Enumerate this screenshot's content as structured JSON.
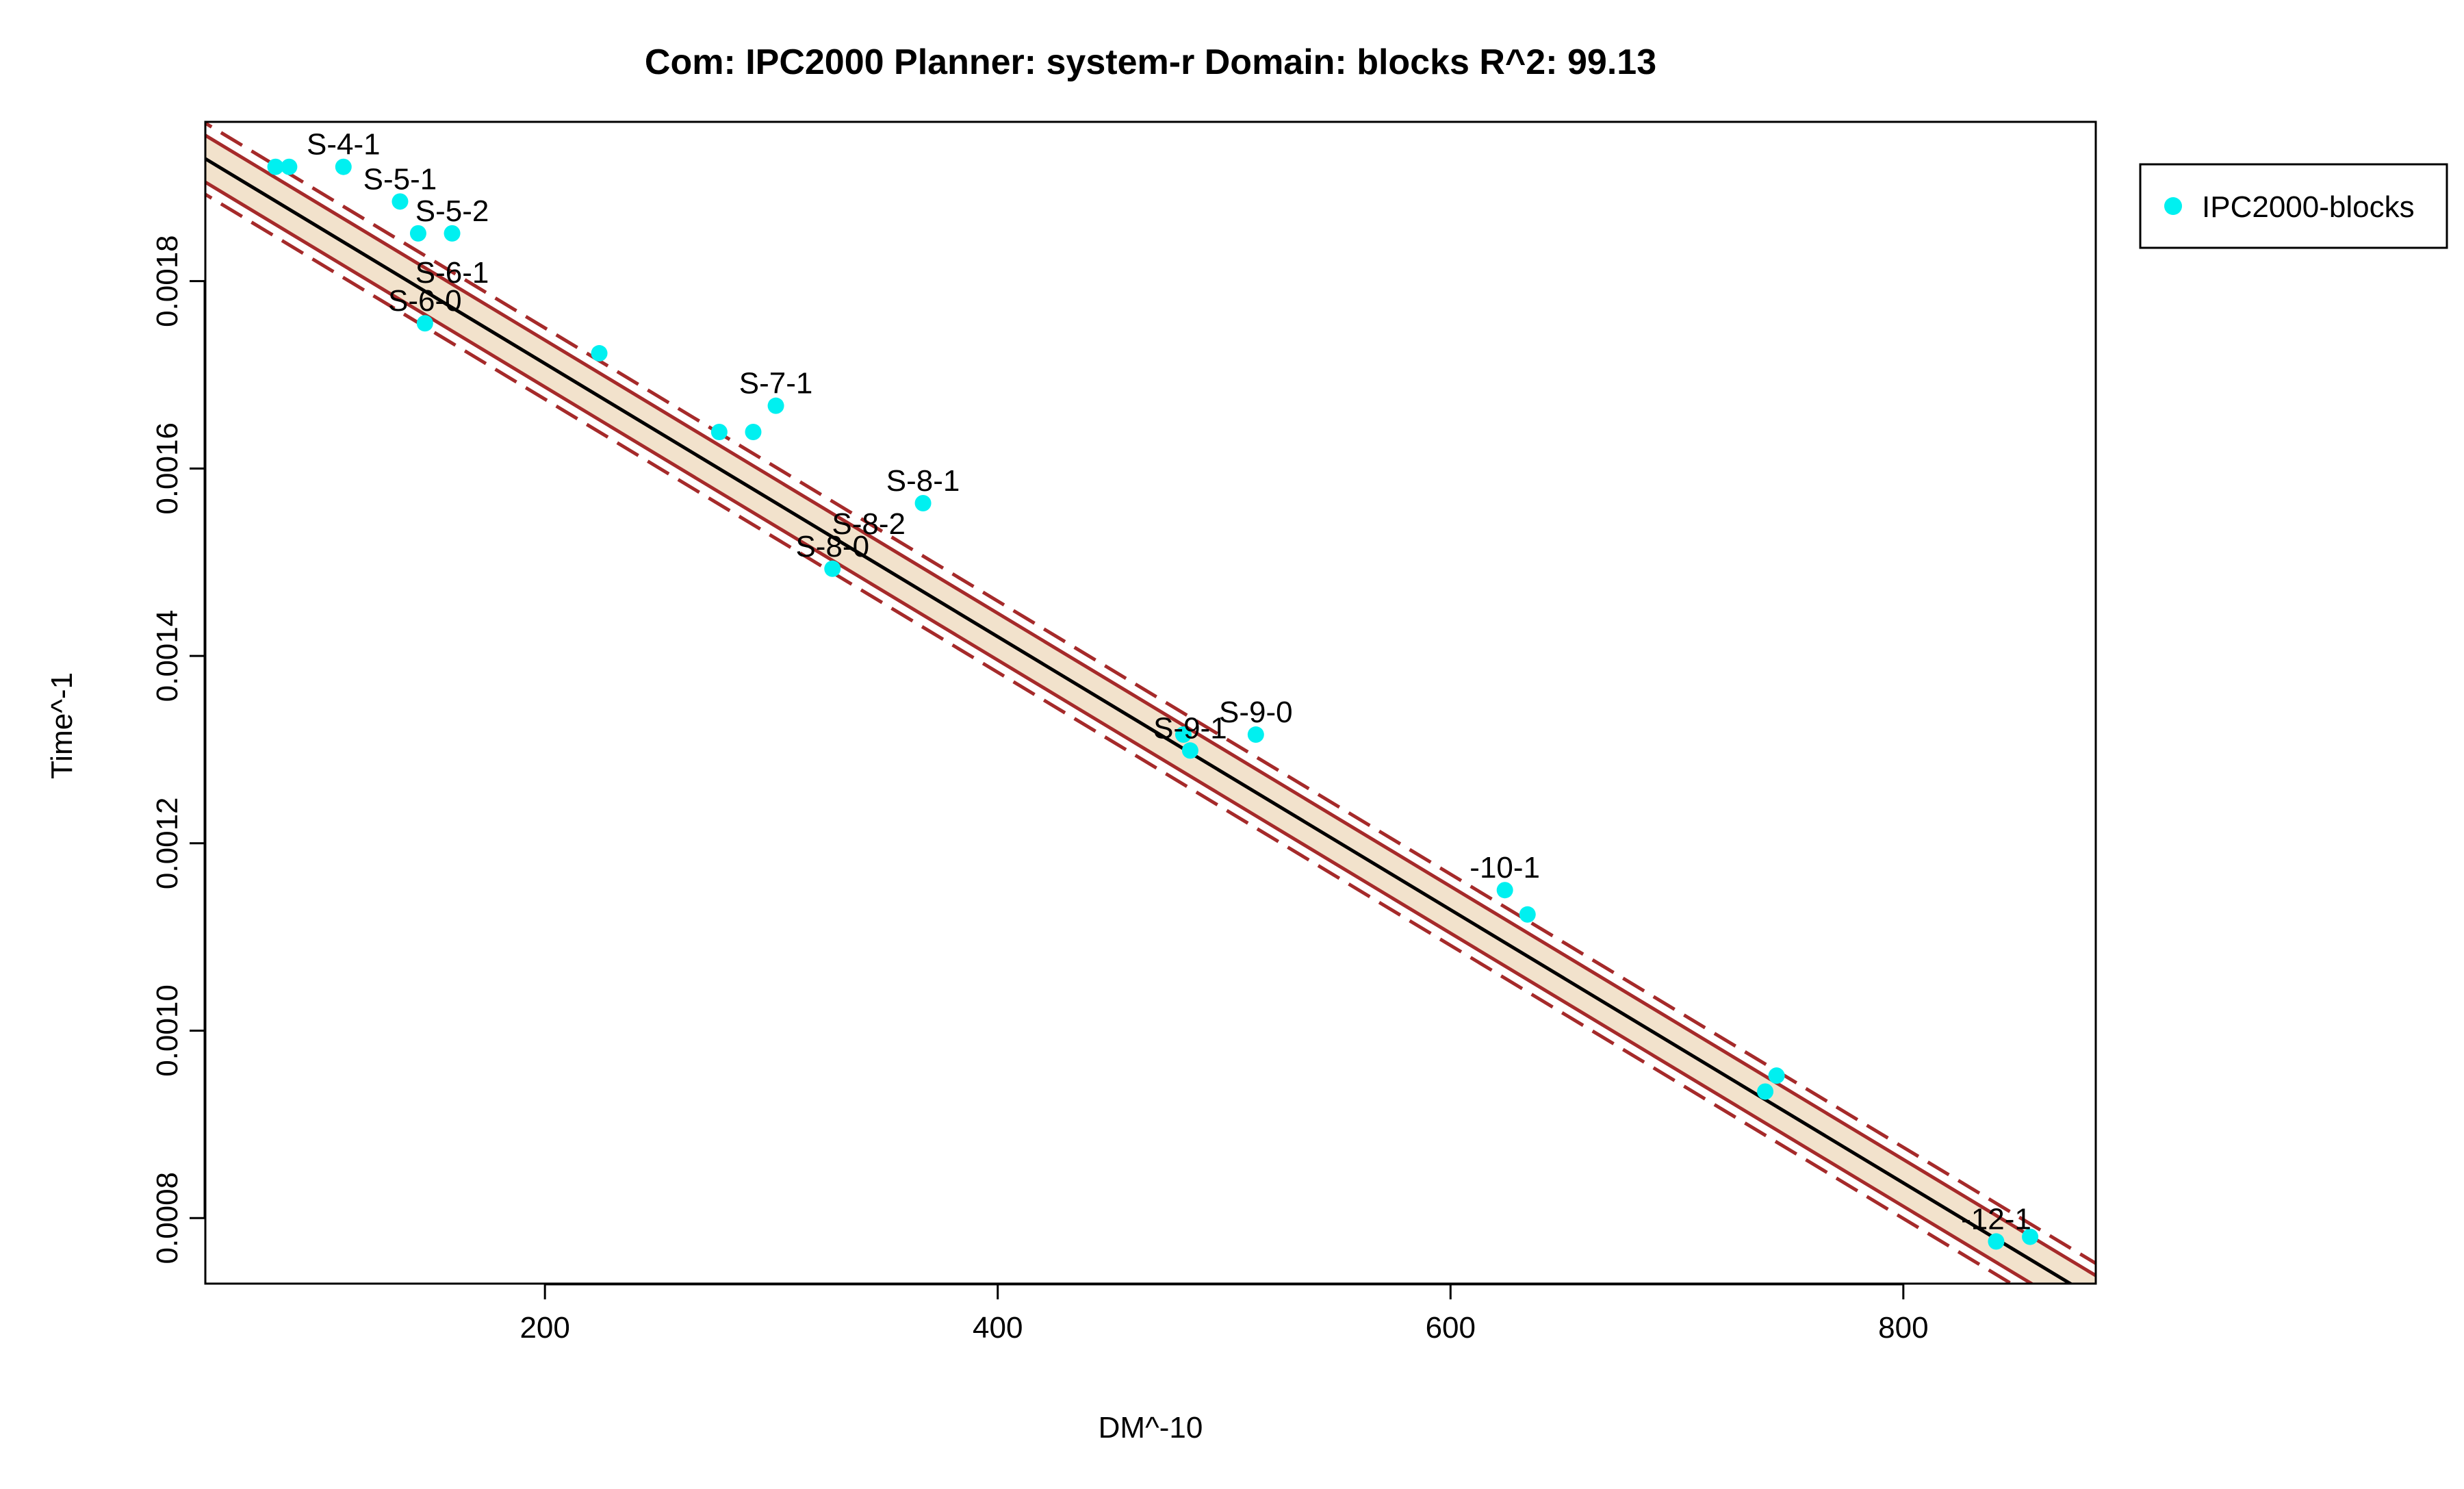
{
  "chart_data": {
    "type": "scatter",
    "title": "Com: IPC2000 Planner: system-r Domain: blocks R^2: 99.13",
    "xlabel": "DM^-10",
    "ylabel": "Time^-1",
    "xlim": [
      50,
      885
    ],
    "ylim": [
      0.00073,
      0.00197
    ],
    "xticks": [
      200,
      400,
      600,
      800
    ],
    "xtick_labels": [
      "200",
      "400",
      "600",
      "800"
    ],
    "yticks": [
      0.0008,
      0.001,
      0.0012,
      0.0014,
      0.0016,
      0.0018
    ],
    "ytick_labels": [
      "0.0008",
      "0.0010",
      "0.0012",
      "0.0014",
      "0.0016",
      "0.0018"
    ],
    "grid": false,
    "legend": {
      "position": "top-right",
      "entries": [
        "IPC2000-blocks"
      ]
    },
    "series": [
      {
        "name": "IPC2000-blocks",
        "color": "#00f0f0",
        "points": [
          {
            "x": 81,
            "y": 0.001922
          },
          {
            "x": 87,
            "y": 0.001922
          },
          {
            "x": 111,
            "y": 0.001922
          },
          {
            "x": 136,
            "y": 0.001885
          },
          {
            "x": 144,
            "y": 0.001851
          },
          {
            "x": 159,
            "y": 0.001851
          },
          {
            "x": 147,
            "y": 0.001755
          },
          {
            "x": 224,
            "y": 0.001723
          },
          {
            "x": 277,
            "y": 0.001639
          },
          {
            "x": 292,
            "y": 0.001639
          },
          {
            "x": 302,
            "y": 0.001667
          },
          {
            "x": 327,
            "y": 0.001493
          },
          {
            "x": 367,
            "y": 0.001563
          },
          {
            "x": 482,
            "y": 0.001316
          },
          {
            "x": 485,
            "y": 0.001299
          },
          {
            "x": 514,
            "y": 0.001316
          },
          {
            "x": 624,
            "y": 0.00115
          },
          {
            "x": 634,
            "y": 0.001124
          },
          {
            "x": 739,
            "y": 0.000935
          },
          {
            "x": 744,
            "y": 0.000952
          },
          {
            "x": 841,
            "y": 0.000775
          },
          {
            "x": 856,
            "y": 0.00078
          }
        ]
      }
    ],
    "annotations": [
      {
        "text": "S-4-1",
        "x": 111,
        "y": 0.001922
      },
      {
        "text": "S-5-1",
        "x": 136,
        "y": 0.001885
      },
      {
        "text": "S-5-2",
        "x": 159,
        "y": 0.001851
      },
      {
        "text": "S-6-1",
        "x": 159,
        "y": 0.001785
      },
      {
        "text": "S-6-0",
        "x": 147,
        "y": 0.001755
      },
      {
        "text": "S-7-1",
        "x": 302,
        "y": 0.001667
      },
      {
        "text": "S-8-1",
        "x": 367,
        "y": 0.001563
      },
      {
        "text": "S-8-2",
        "x": 343,
        "y": 0.001517
      },
      {
        "text": "S-8-0",
        "x": 327,
        "y": 0.001493
      },
      {
        "text": "S-9-1",
        "x": 485,
        "y": 0.001299
      },
      {
        "text": "S-9-0",
        "x": 514,
        "y": 0.001316
      },
      {
        "text": "-10-1",
        "x": 624,
        "y": 0.00115
      },
      {
        "text": "-12-1",
        "x": 841,
        "y": 0.000775
      }
    ],
    "fit_line": {
      "intercept": 0.0020035,
      "slope": -1.4575e-06,
      "color": "#000000"
    },
    "confidence_band": {
      "halfwidth": 2.5e-05,
      "fill": "#f2e2cc",
      "line_color": "#a52a2a"
    },
    "prediction_band": {
      "halfwidth": 3.8e-05,
      "line_color": "#a52a2a"
    }
  }
}
